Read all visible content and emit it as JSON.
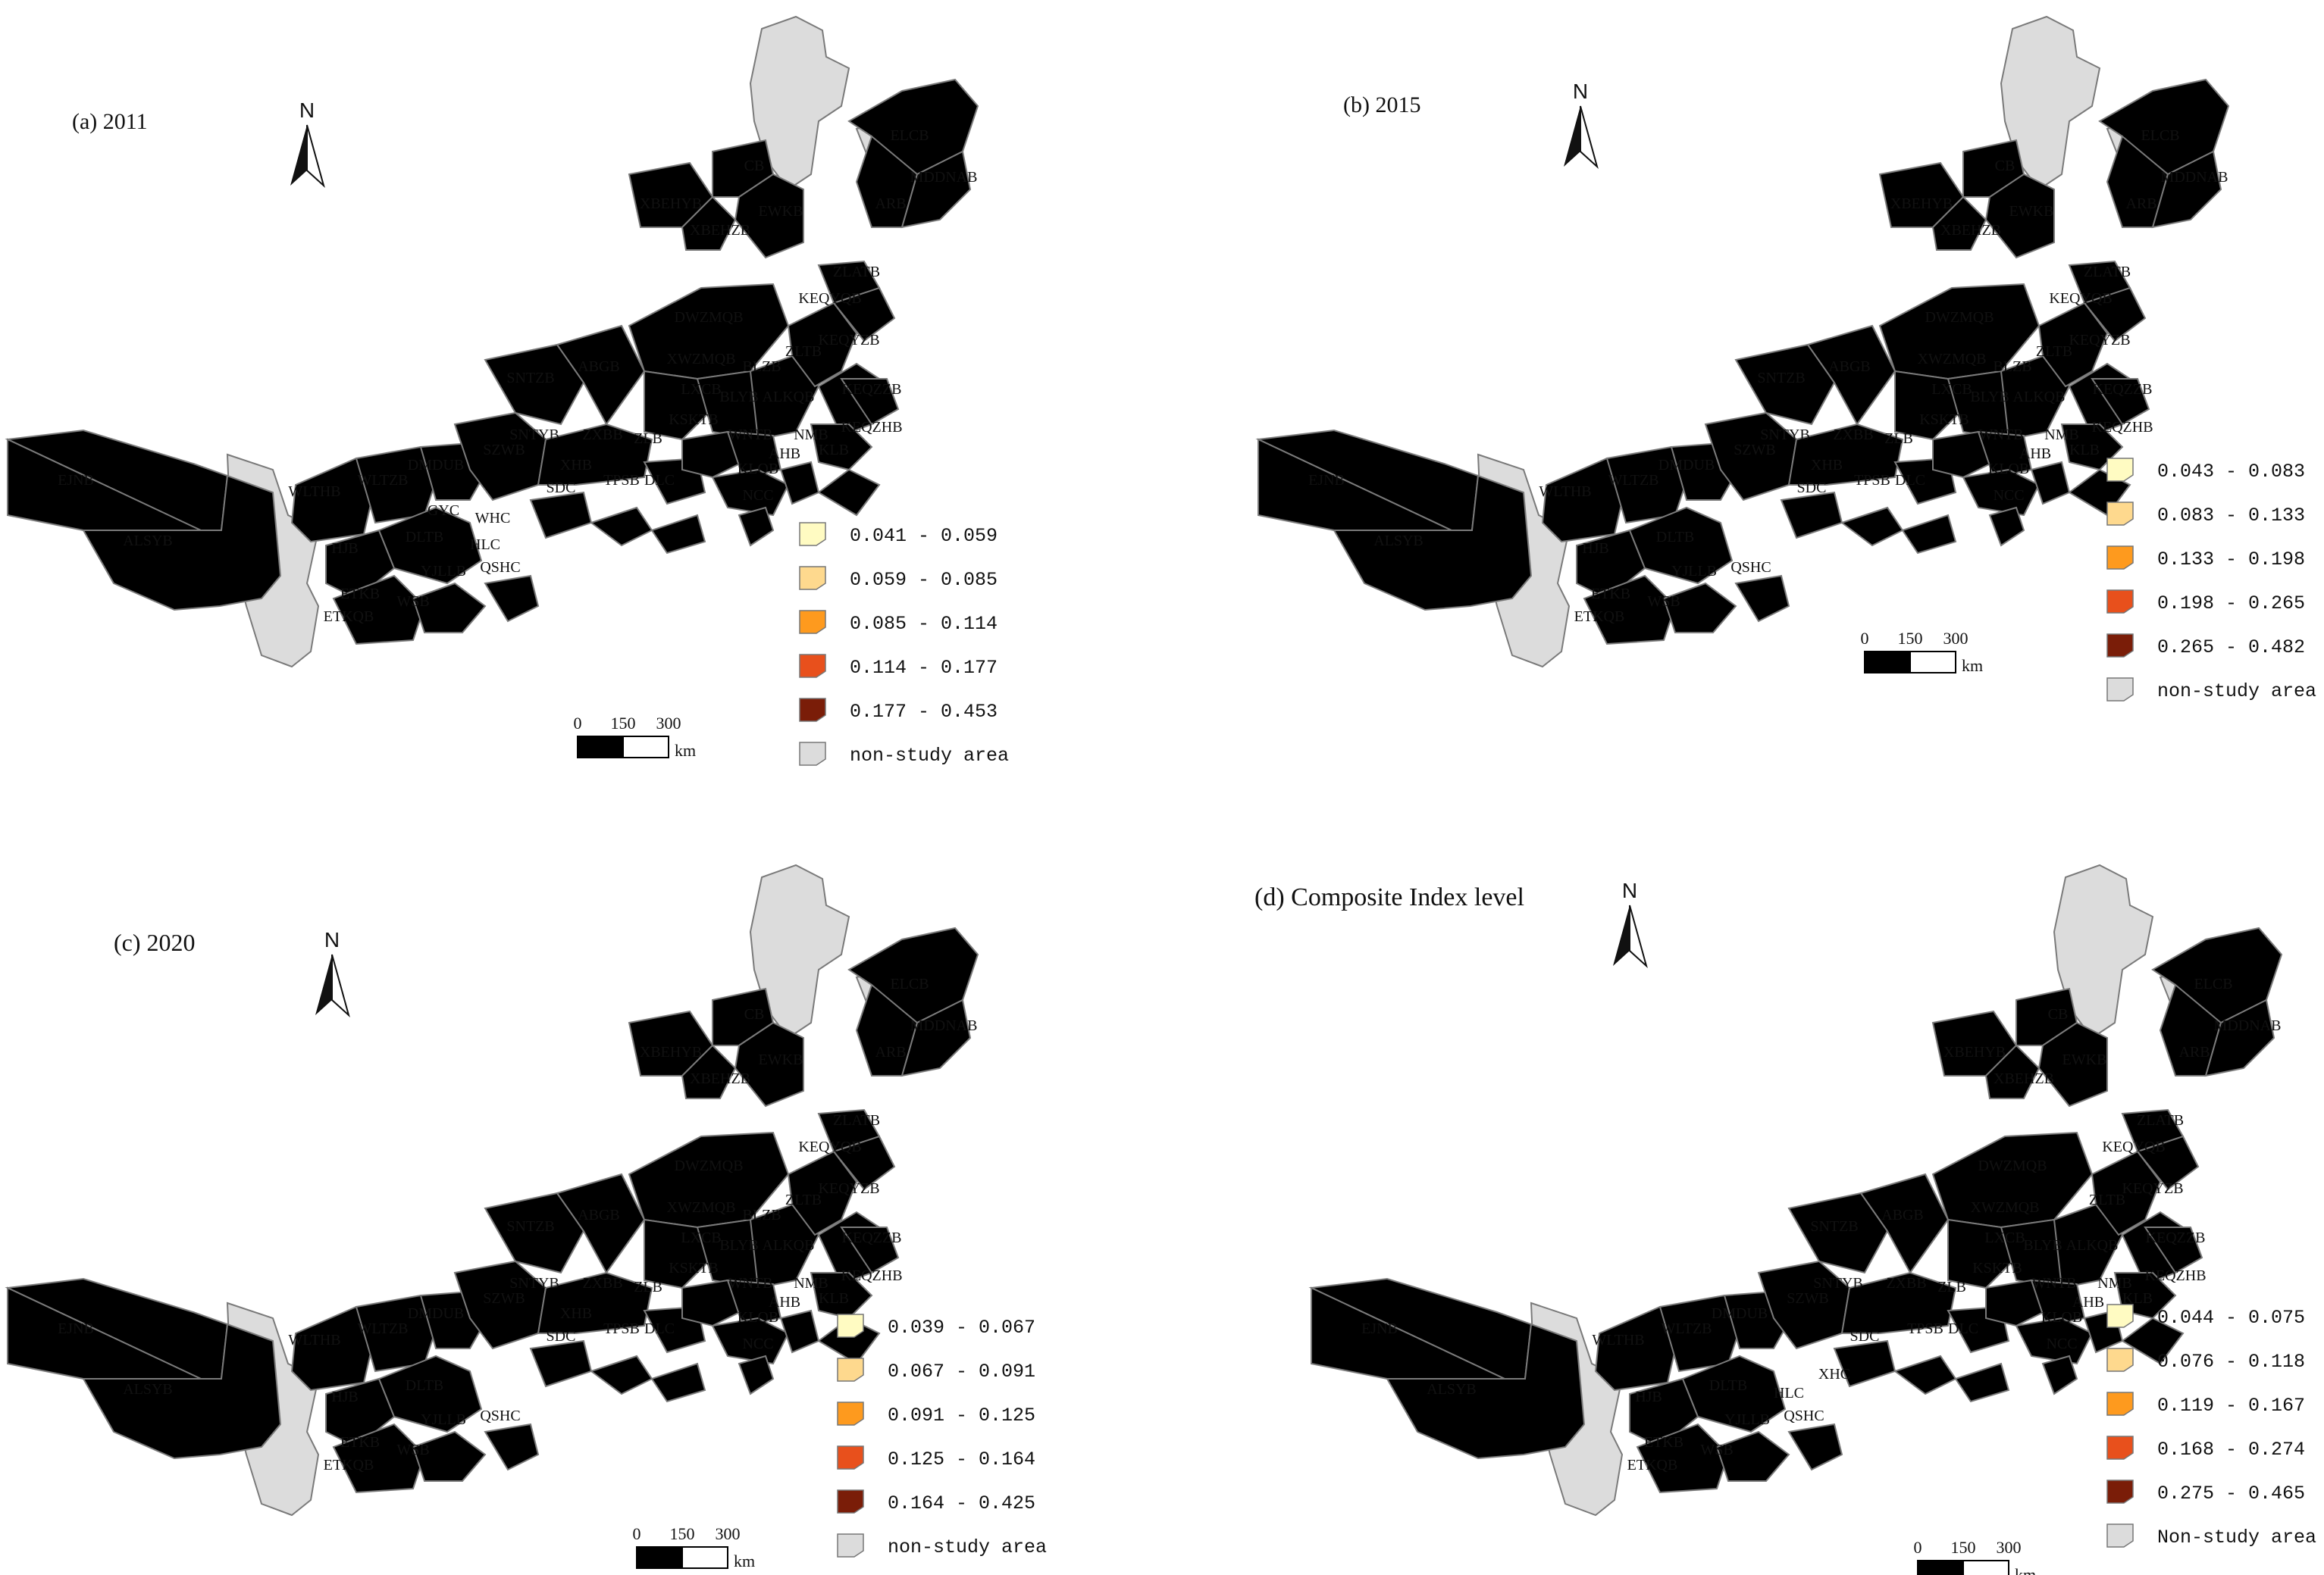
{
  "panels": [
    {
      "title": "(a) 2011",
      "north": "N",
      "scale": {
        "labels": [
          "0",
          "150",
          "300"
        ],
        "unit": "km"
      },
      "legend": [
        "0.041  -  0.059",
        "0.059  -  0.085",
        "0.085  -  0.114",
        "0.114  -  0.177",
        "0.177  -  0.453"
      ],
      "legend_other": "non-study area",
      "labels": [
        "EJNB",
        "ALSYB",
        "WLTHB",
        "WLTZB",
        "DMDUB",
        "HJB",
        "DLTB",
        "ETKB",
        "ETKQB",
        "WSB",
        "YJLLB",
        "QSHC",
        "HLC",
        "GYC",
        "WHC",
        "SZWB",
        "SNTYB",
        "ZXBB",
        "XHB",
        "SDC",
        "ZLB",
        "TPSB",
        "DLC",
        "KSKTB",
        "LXCB",
        "BLYB",
        "ALKQB",
        "WNTB",
        "NMB",
        "AHB",
        "KLB",
        "KLQB",
        "NCC",
        "KEQZZB",
        "KEQZHB",
        "ZLTB",
        "BLZB",
        "XWZMQB",
        "DWZMQB",
        "SNTZB",
        "ABGB",
        "KEQYZB",
        "KEQYQB",
        "ZLATB",
        "XBEHYB",
        "XBEHZB",
        "CB",
        "EWKB",
        "ELCB",
        "MDDNAB",
        "ARB"
      ]
    },
    {
      "title": "(b) 2015",
      "north": "N",
      "scale": {
        "labels": [
          "0",
          "150",
          "300"
        ],
        "unit": "km"
      },
      "legend": [
        "0.043  -  0.083",
        "0.083  -  0.133",
        "0.133  -  0.198",
        "0.198  -  0.265",
        "0.265  -  0.482"
      ],
      "legend_other": "non-study area",
      "labels": [
        "EJNB",
        "ALSYB",
        "WLTHB",
        "WLTZB",
        "DMDUB",
        "HJB",
        "DLTB",
        "ETKB",
        "ETKQB",
        "WSB",
        "YJLLB",
        "QSHC",
        "SZWB",
        "SNTYB",
        "ZXBB",
        "XHB",
        "SDC",
        "ZLB",
        "TPSB",
        "DLC",
        "KSKTB",
        "LXCB",
        "BLYB",
        "ALKQB",
        "WNTB",
        "NMB",
        "AHB",
        "KLB",
        "KLQB",
        "NCC",
        "KEQZZB",
        "KEQZHB",
        "ZLTB",
        "BLZB",
        "XWZMQB",
        "DWZMQB",
        "SNTZB",
        "ABGB",
        "KEQYZB",
        "KEQYQB",
        "ZLATB",
        "XBEHYB",
        "XBEHZB",
        "CB",
        "EWKB",
        "ELCB",
        "MDDNAB",
        "ARB"
      ]
    },
    {
      "title": "(c) 2020",
      "north": "N",
      "scale": {
        "labels": [
          "0",
          "150",
          "300"
        ],
        "unit": "km"
      },
      "legend": [
        "0.039  -  0.067",
        "0.067  -  0.091",
        "0.091  -  0.125",
        "0.125  -  0.164",
        "0.164  -  0.425"
      ],
      "legend_other": "non-study area",
      "labels": [
        "EJNB",
        "ALSYB",
        "WLTHB",
        "WLTZB",
        "DMDUB",
        "HJB",
        "DLTB",
        "ETKB",
        "ETKQB",
        "WSB",
        "YJLLB",
        "QSHC",
        "SZWB",
        "SNTYB",
        "ZXBB",
        "XHB",
        "SDC",
        "ZLB",
        "TPSB",
        "DLC",
        "KSKTB",
        "LXCB",
        "BLYB",
        "ALKQB",
        "WNTB",
        "NMB",
        "AHB",
        "KLB",
        "KLQB",
        "NCC",
        "KEQZZB",
        "KEQZHB",
        "ZLTB",
        "BLZB",
        "XWZMQB",
        "DWZMQB",
        "SNTZB",
        "ABGB",
        "KEQYZB",
        "KEQYQB",
        "ZLATB",
        "XBEHYB",
        "XBEHZB",
        "CB",
        "EWKB",
        "ELCB",
        "MDDNAB",
        "ARB"
      ]
    },
    {
      "title": "(d) Composite Index level",
      "north": "N",
      "scale": {
        "labels": [
          "0",
          "150",
          "300"
        ],
        "unit": "km"
      },
      "legend": [
        "0.044  -  0.075",
        "0.076  -  0.118",
        "0.119  -  0.167",
        "0.168  -  0.274",
        "0.275  -  0.465"
      ],
      "legend_other": "Non-study area",
      "labels": [
        "EJNB",
        "ALSYB",
        "WLTHB",
        "WLTZB",
        "DMDUB",
        "HJB",
        "DLTB",
        "ETKB",
        "ETKQB",
        "WSB",
        "YJLLB",
        "QSHC",
        "HLC",
        "XHC",
        "SZWB",
        "SNTYB",
        "ZXBB",
        "SDC",
        "ZLB",
        "TPSB",
        "DLC",
        "KSKTB",
        "LXCB",
        "BLYB",
        "ALKQB",
        "WNTB",
        "NMB",
        "AHB",
        "KLB",
        "KLQB",
        "NCC",
        "KEQZZB",
        "KEQZHB",
        "ZLTB",
        "XWZMQB",
        "DWZMQB",
        "SNTZB",
        "ABGB",
        "KEQYZB",
        "KEQYQB",
        "ZLATB",
        "XBEHYB",
        "XBEHZB",
        "CB",
        "EWKB",
        "ELCB",
        "MDDNAB",
        "ARB"
      ]
    }
  ],
  "colors": {
    "class1": "#fffbc2",
    "class2": "#fed98e",
    "class3": "#fe9a1e",
    "class4": "#e8501c",
    "class5": "#c42a1a",
    "dark": "#7a1d08",
    "non_study": "#dcdcdc",
    "border": "#7a7a7a"
  }
}
